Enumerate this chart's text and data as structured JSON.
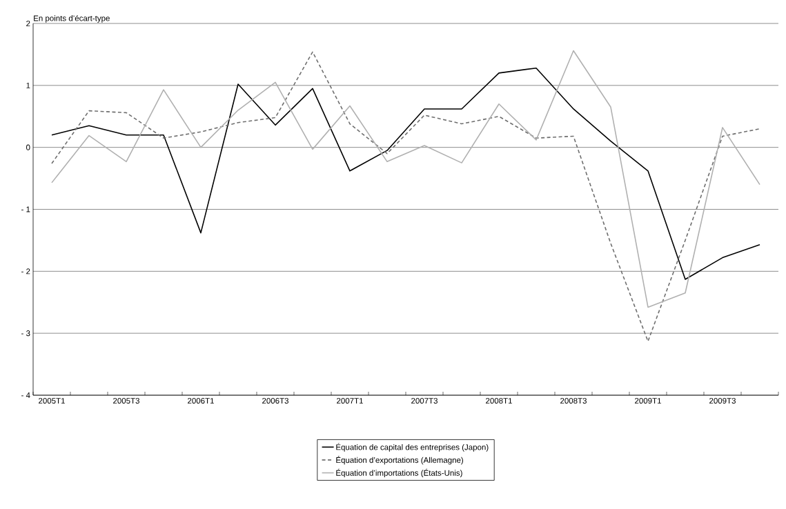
{
  "chart_data": {
    "type": "line",
    "ylabel": "En points d’écart-type",
    "categories": [
      "2005T1",
      null,
      "2005T3",
      null,
      "2006T1",
      null,
      "2006T3",
      null,
      "2007T1",
      null,
      "2007T3",
      null,
      "2008T1",
      null,
      "2008T3",
      null,
      "2009T1",
      null,
      "2009T3",
      null
    ],
    "series": [
      {
        "name": "Équation de capital des entreprises (Japon)",
        "color": "#000000",
        "line_style": "solid",
        "values": [
          0.2,
          0.35,
          0.2,
          0.2,
          -1.38,
          1.02,
          0.36,
          0.95,
          -0.38,
          -0.05,
          0.62,
          0.62,
          1.2,
          1.28,
          0.62,
          0.1,
          -0.38,
          -2.13,
          -1.78,
          -1.57
        ]
      },
      {
        "name": "Équation d’exportations (Allemagne)",
        "color": "#6e6e6e",
        "line_style": "dashed",
        "values": [
          -0.26,
          0.59,
          0.56,
          0.15,
          0.25,
          0.4,
          0.48,
          1.54,
          0.38,
          -0.1,
          0.52,
          0.38,
          0.5,
          0.15,
          0.18,
          -1.55,
          -3.13,
          -1.5,
          0.18,
          0.3
        ]
      },
      {
        "name": "Équation d’importations (États-Unis)",
        "color": "#b0b0b0",
        "line_style": "solid",
        "values": [
          -0.57,
          0.19,
          -0.23,
          0.93,
          0.0,
          0.6,
          1.05,
          -0.03,
          0.67,
          -0.23,
          0.03,
          -0.25,
          0.7,
          0.12,
          1.56,
          0.65,
          -2.58,
          -2.35,
          0.32,
          -0.6
        ]
      }
    ],
    "ylim": [
      -4,
      2
    ],
    "yticks": [
      {
        "value": -4,
        "label": "- 4"
      },
      {
        "value": -3,
        "label": "- 3"
      },
      {
        "value": -2,
        "label": "- 2"
      },
      {
        "value": -1,
        "label": "- 1"
      },
      0,
      1,
      2
    ],
    "grid": "y",
    "legend": "bottom",
    "marker": "none"
  }
}
